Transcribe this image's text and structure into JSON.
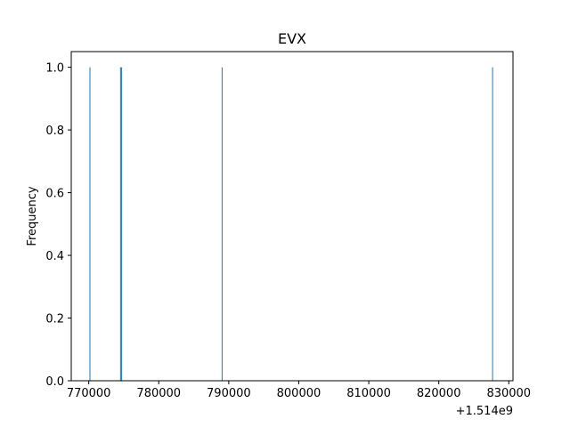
{
  "chart_data": {
    "type": "bar",
    "title": "EVX",
    "xlabel": "",
    "ylabel": "Frequency",
    "x_offset_label": "+1.514e9",
    "xlim": [
      767500,
      830600
    ],
    "ylim": [
      0.0,
      1.05
    ],
    "x_ticks": [
      770000,
      780000,
      790000,
      800000,
      810000,
      820000,
      830000
    ],
    "x_tick_labels": [
      "770000",
      "780000",
      "790000",
      "800000",
      "810000",
      "820000",
      "830000"
    ],
    "y_ticks": [
      0.0,
      0.2,
      0.4,
      0.6,
      0.8,
      1.0
    ],
    "y_tick_labels": [
      "0.0",
      "0.2",
      "0.4",
      "0.6",
      "0.8",
      "1.0"
    ],
    "bar_color": "#1f77b4",
    "series": [
      {
        "values": [
          {
            "x": 770170,
            "y": 1
          },
          {
            "x": 774540,
            "y": 1
          },
          {
            "x": 774700,
            "y": 1
          },
          {
            "x": 789050,
            "y": 1
          },
          {
            "x": 827680,
            "y": 1
          }
        ]
      }
    ],
    "grid": false
  }
}
